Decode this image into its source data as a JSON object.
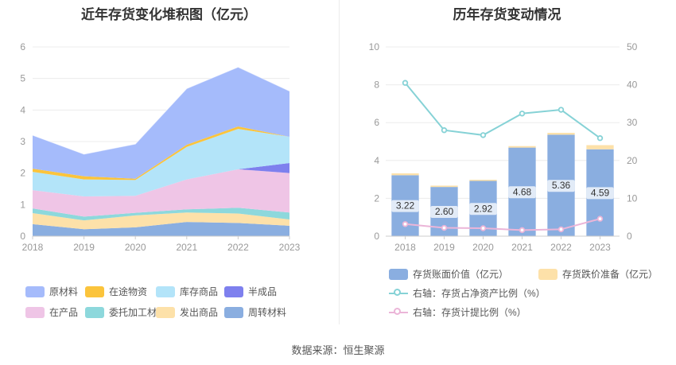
{
  "chart_data": [
    {
      "type": "area",
      "stacked": true,
      "title": "近年存货变化堆积图（亿元）",
      "x": [
        "2018",
        "2019",
        "2020",
        "2021",
        "2022",
        "2023"
      ],
      "ylim": [
        0,
        6
      ],
      "yticks": [
        0,
        1,
        2,
        3,
        4,
        5,
        6
      ],
      "grid": true,
      "legend_position": "bottom",
      "series": [
        {
          "name": "周转材料",
          "color": "#8aaee0",
          "values": [
            0.38,
            0.22,
            0.28,
            0.45,
            0.42,
            0.33
          ]
        },
        {
          "name": "发出商品",
          "color": "#fde1a9",
          "values": [
            0.35,
            0.28,
            0.38,
            0.3,
            0.3,
            0.2
          ]
        },
        {
          "name": "委托加工材料",
          "color": "#8dd8dc",
          "values": [
            0.15,
            0.12,
            0.08,
            0.1,
            0.18,
            0.22
          ]
        },
        {
          "name": "在产品",
          "color": "#efc5e6",
          "values": [
            0.58,
            0.64,
            0.54,
            0.95,
            1.22,
            1.25
          ]
        },
        {
          "name": "半成品",
          "color": "#7e80ee",
          "values": [
            0.0,
            0.0,
            0.0,
            0.0,
            0.0,
            0.32
          ]
        },
        {
          "name": "库存商品",
          "color": "#b3e4f9",
          "values": [
            0.58,
            0.54,
            0.5,
            1.03,
            1.28,
            0.83
          ]
        },
        {
          "name": "在途物资",
          "color": "#fbc43c",
          "values": [
            0.1,
            0.1,
            0.04,
            0.07,
            0.08,
            0.0
          ]
        },
        {
          "name": "原材料",
          "color": "#a5bbfb",
          "values": [
            1.06,
            0.7,
            1.1,
            1.78,
            1.88,
            1.45
          ]
        }
      ],
      "legend_order": [
        "原材料",
        "在途物资",
        "库存商品",
        "半成品",
        "在产品",
        "委托加工材料",
        "发出商品",
        "周转材料"
      ]
    },
    {
      "type": "bar",
      "title": "历年存货变动情况",
      "categories": [
        "2018",
        "2019",
        "2020",
        "2021",
        "2022",
        "2023"
      ],
      "ylim": [
        0,
        10
      ],
      "yticks": [
        0,
        2,
        4,
        6,
        8,
        10
      ],
      "y2lim": [
        0,
        50
      ],
      "y2ticks": [
        0,
        10,
        20,
        30,
        40,
        50
      ],
      "grid": true,
      "legend_position": "bottom",
      "bar_series": [
        {
          "name": "存货账面价值（亿元）",
          "color": "#8aaee0",
          "values": [
            3.22,
            2.6,
            2.92,
            4.68,
            5.36,
            4.59
          ],
          "labels": [
            "3.22",
            "2.60",
            "2.92",
            "4.68",
            "5.36",
            "4.59"
          ]
        },
        {
          "name": "存货跌价准备（亿元）",
          "color": "#fde1a9",
          "values": [
            0.1,
            0.07,
            0.06,
            0.08,
            0.1,
            0.22
          ]
        }
      ],
      "line_series": [
        {
          "name": "右轴：存货占净资产比例（%）",
          "color": "#86d2d6",
          "axis": "right",
          "values": [
            40.5,
            28.0,
            26.7,
            32.4,
            33.4,
            25.9
          ]
        },
        {
          "name": "右轴：存货计提比例（%）",
          "color": "#ebb5d8",
          "axis": "right",
          "values": [
            3.2,
            2.2,
            2.1,
            1.6,
            1.8,
            4.6
          ]
        }
      ]
    }
  ],
  "footer": {
    "source": "数据来源：恒生聚源"
  }
}
